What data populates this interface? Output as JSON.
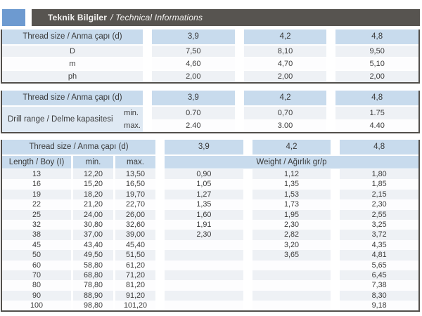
{
  "header": {
    "title_tr": "Teknik Bilgiler",
    "title_en": "/ Technical Informations"
  },
  "colors": {
    "accent_blue": "#6d9ad0",
    "bar_dark": "#575450",
    "header_blue": "#c8dbed",
    "label_blue": "#dfe9f3",
    "row_shaded": "#eef1f5",
    "border_dark": "#53504c",
    "text": "#3a3a3a"
  },
  "table1": {
    "header": [
      "Thread size / Anma çapı (d)",
      "3,9",
      "4,2",
      "4,8"
    ],
    "rows": [
      {
        "label": "D",
        "values": [
          "7,50",
          "8,10",
          "9,50"
        ]
      },
      {
        "label": "m",
        "values": [
          "4,60",
          "4,70",
          "5,10"
        ]
      },
      {
        "label": "ph",
        "values": [
          "2,00",
          "2,00",
          "2,00"
        ]
      }
    ]
  },
  "table2": {
    "header": [
      "Thread size / Anma çapı (d)",
      "3,9",
      "4,2",
      "4,8"
    ],
    "row_label": "Drill range / Delme kapasitesi",
    "rows": [
      {
        "sub": "min.",
        "values": [
          "0.70",
          "0,70",
          "1.75"
        ]
      },
      {
        "sub": "max.",
        "values": [
          "2.40",
          "3.00",
          "4.40"
        ]
      }
    ]
  },
  "table3": {
    "header": [
      "Thread size / Anma çapı (d)",
      "3,9",
      "4,2",
      "4,8"
    ],
    "subheader": [
      "Length / Boy (I)",
      "min.",
      "max.",
      "Weight / Ağırlık gr/p"
    ],
    "rows": [
      [
        "13",
        "12,20",
        "13,50",
        "0,90",
        "1,12",
        "1,80"
      ],
      [
        "16",
        "15,20",
        "16,50",
        "1,05",
        "1,35",
        "1,85"
      ],
      [
        "19",
        "18,20",
        "19,70",
        "1,27",
        "1,53",
        "2,15"
      ],
      [
        "22",
        "21,20",
        "22,70",
        "1,35",
        "1,73",
        "2,30"
      ],
      [
        "25",
        "24,00",
        "26,00",
        "1,60",
        "1,95",
        "2,55"
      ],
      [
        "32",
        "30,80",
        "32,60",
        "1,91",
        "2,30",
        "3,25"
      ],
      [
        "38",
        "37,00",
        "39,00",
        "2,30",
        "2,82",
        "3,72"
      ],
      [
        "45",
        "43,40",
        "45,40",
        "",
        "3,20",
        "4,35"
      ],
      [
        "50",
        "49,50",
        "51,50",
        "",
        "3,65",
        "4,81"
      ],
      [
        "60",
        "58,80",
        "61,20",
        "",
        "",
        "5,65"
      ],
      [
        "70",
        "68,80",
        "71,20",
        "",
        "",
        "6,45"
      ],
      [
        "80",
        "78,80",
        "81,20",
        "",
        "",
        "7,38"
      ],
      [
        "90",
        "88,90",
        "91,20",
        "",
        "",
        "8,30"
      ],
      [
        "100",
        "98,80",
        "101,20",
        "",
        "",
        "9,18"
      ]
    ]
  }
}
